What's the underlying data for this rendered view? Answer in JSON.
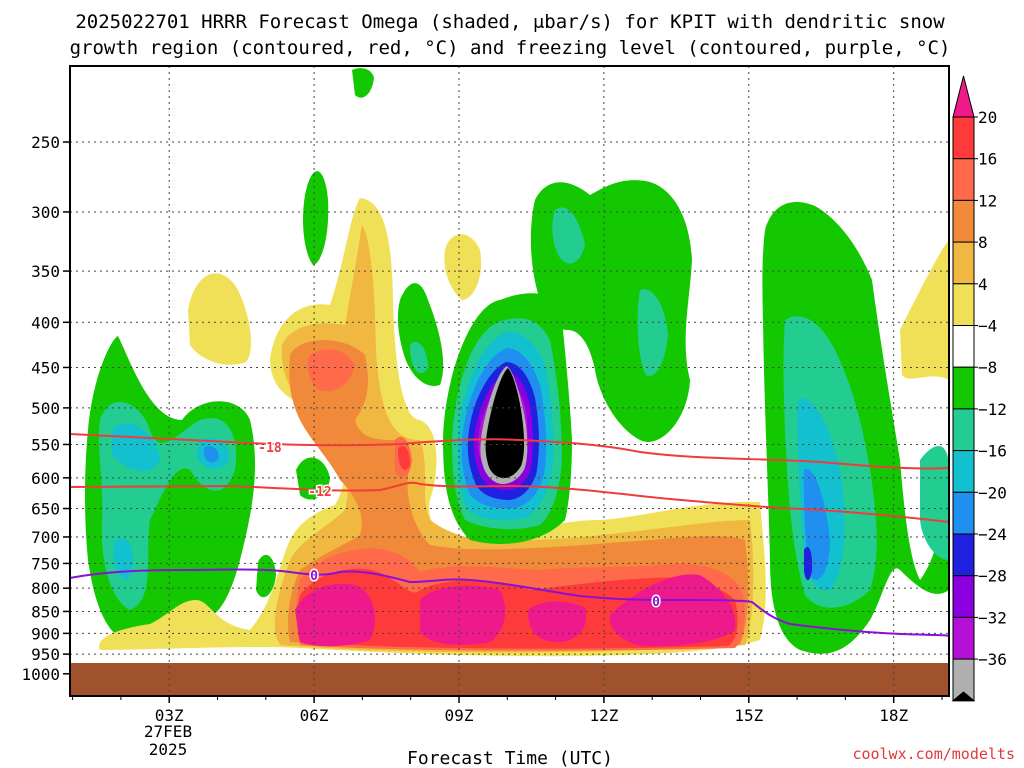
{
  "chart_data": {
    "type": "heatmap",
    "title_lines": [
      "2025022701 HRRR Forecast Omega (shaded, μbar/s) for KPIT with dendritic snow",
      "growth region (contoured, red, °C) and freezing level (contoured, purple, °C)"
    ],
    "xlabel": "Forecast Time (UTC)",
    "x_ticks": [
      {
        "hour": 3,
        "label": "03Z"
      },
      {
        "hour": 6,
        "label": "06Z"
      },
      {
        "hour": 9,
        "label": "09Z"
      },
      {
        "hour": 12,
        "label": "12Z"
      },
      {
        "hour": 15,
        "label": "15Z"
      },
      {
        "hour": 18,
        "label": "18Z"
      }
    ],
    "date_label": [
      "27FEB",
      "2025"
    ],
    "xlim": [
      1,
      19
    ],
    "y_ticks": [
      250,
      300,
      350,
      400,
      450,
      500,
      550,
      600,
      650,
      700,
      750,
      800,
      850,
      900,
      950,
      1000
    ],
    "ylim": [
      1000,
      200
    ],
    "y_scale": "log (pressure, hPa)",
    "grid": true,
    "colorbar": {
      "labels": [
        "20",
        "16",
        "12",
        "8",
        "4",
        "−4",
        "−8",
        "−12",
        "−16",
        "−20",
        "−24",
        "−28",
        "−32",
        "−36"
      ],
      "colors": [
        "#ee1a8c",
        "#ff3a3a",
        "#ff6a4a",
        "#f08a3a",
        "#f0b840",
        "#f0e058",
        "#ffffff",
        "#13c800",
        "#23cc90",
        "#13c0d0",
        "#2090f0",
        "#2020e0",
        "#8a00e0",
        "#b410d8",
        "#b0b0b0",
        "#000000"
      ]
    },
    "contours": {
      "dgz": {
        "color": "#f03c3c",
        "labels": [
          "-18",
          "-12"
        ]
      },
      "freezing": {
        "color": "#8a10d8",
        "labels": [
          "0",
          "0"
        ]
      }
    },
    "credit": "coolwx.com/modelts"
  }
}
